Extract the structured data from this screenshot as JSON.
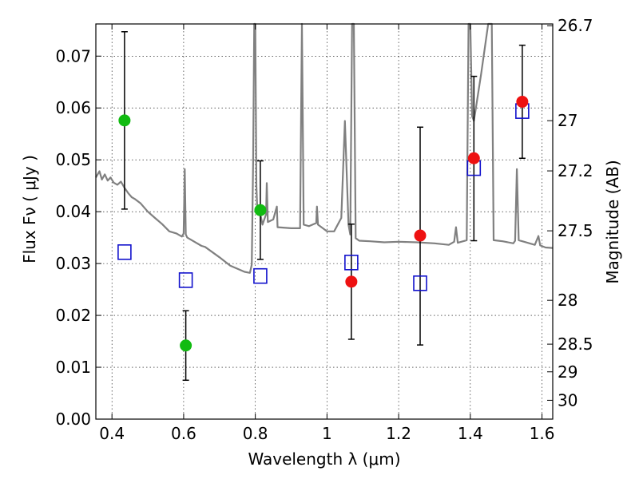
{
  "chart_data": {
    "type": "scatter",
    "xlabel": "Wavelength  λ (μm)",
    "ylabel": "Flux  Fν ( μJy )",
    "y2label": "Magnitude (AB)",
    "xlim": [
      0.355,
      1.63
    ],
    "ylim": [
      0.0,
      0.0762
    ],
    "grid": true,
    "x_ticks": [
      {
        "value": 0.4,
        "label": "0.4"
      },
      {
        "value": 0.6,
        "label": "0.6"
      },
      {
        "value": 0.8,
        "label": "0.8"
      },
      {
        "value": 1.0,
        "label": "1"
      },
      {
        "value": 1.2,
        "label": "1.2"
      },
      {
        "value": 1.4,
        "label": "1.4"
      },
      {
        "value": 1.6,
        "label": "1.6"
      }
    ],
    "y_ticks": [
      {
        "value": 0.0,
        "label": "0.00"
      },
      {
        "value": 0.01,
        "label": "0.01"
      },
      {
        "value": 0.02,
        "label": "0.02"
      },
      {
        "value": 0.03,
        "label": "0.03"
      },
      {
        "value": 0.04,
        "label": "0.04"
      },
      {
        "value": 0.05,
        "label": "0.05"
      },
      {
        "value": 0.06,
        "label": "0.06"
      },
      {
        "value": 0.07,
        "label": "0.07"
      }
    ],
    "magnitude_ticks": [
      {
        "mag": 26.7,
        "label": "26.7"
      },
      {
        "mag": 27.0,
        "label": "27"
      },
      {
        "mag": 27.2,
        "label": "27.2"
      },
      {
        "mag": 27.5,
        "label": "27.5"
      },
      {
        "mag": 28.0,
        "label": "28"
      },
      {
        "mag": 28.5,
        "label": "28.5"
      },
      {
        "mag": 29.0,
        "label": "29"
      },
      {
        "mag": 30.0,
        "label": "30"
      }
    ],
    "colors": {
      "observed_optical": "#11bb11",
      "observed_nir": "#ee1111",
      "model": "#1111cc",
      "spectrum": "#808080",
      "errorbar": "#000000"
    },
    "series": [
      {
        "marker": "circle",
        "color_key": "observed_optical",
        "points": [
          {
            "x": 0.435,
            "y": 0.0576,
            "ylo": 0.0405,
            "yhi": 0.0747
          },
          {
            "x": 0.606,
            "y": 0.0142,
            "ylo": 0.0075,
            "yhi": 0.0209
          },
          {
            "x": 0.814,
            "y": 0.0403,
            "ylo": 0.0308,
            "yhi": 0.0498
          }
        ]
      },
      {
        "marker": "circle",
        "color_key": "observed_nir",
        "points": [
          {
            "x": 1.068,
            "y": 0.0265,
            "ylo": 0.0154,
            "yhi": 0.0376
          },
          {
            "x": 1.26,
            "y": 0.0354,
            "ylo": 0.0143,
            "yhi": 0.0563
          },
          {
            "x": 1.41,
            "y": 0.0503,
            "ylo": 0.0344,
            "yhi": 0.0661
          },
          {
            "x": 1.545,
            "y": 0.0612,
            "ylo": 0.0503,
            "yhi": 0.0721
          }
        ]
      },
      {
        "marker": "square",
        "color_key": "model",
        "points": [
          {
            "x": 0.435,
            "y": 0.0322
          },
          {
            "x": 0.606,
            "y": 0.0268
          },
          {
            "x": 0.814,
            "y": 0.0276
          },
          {
            "x": 1.068,
            "y": 0.0302
          },
          {
            "x": 1.26,
            "y": 0.0262
          },
          {
            "x": 1.41,
            "y": 0.0484
          },
          {
            "x": 1.545,
            "y": 0.0594
          }
        ]
      }
    ],
    "spectrum": [
      [
        0.355,
        0.0466
      ],
      [
        0.365,
        0.0478
      ],
      [
        0.372,
        0.0462
      ],
      [
        0.38,
        0.0472
      ],
      [
        0.388,
        0.046
      ],
      [
        0.396,
        0.0466
      ],
      [
        0.405,
        0.0456
      ],
      [
        0.415,
        0.0452
      ],
      [
        0.425,
        0.0458
      ],
      [
        0.435,
        0.0446
      ],
      [
        0.445,
        0.0436
      ],
      [
        0.455,
        0.0428
      ],
      [
        0.465,
        0.0424
      ],
      [
        0.48,
        0.0416
      ],
      [
        0.5,
        0.04
      ],
      [
        0.52,
        0.0388
      ],
      [
        0.54,
        0.0376
      ],
      [
        0.56,
        0.0362
      ],
      [
        0.58,
        0.0358
      ],
      [
        0.595,
        0.0352
      ],
      [
        0.6,
        0.0358
      ],
      [
        0.603,
        0.0482
      ],
      [
        0.606,
        0.0356
      ],
      [
        0.61,
        0.035
      ],
      [
        0.63,
        0.0342
      ],
      [
        0.65,
        0.0334
      ],
      [
        0.66,
        0.0332
      ],
      [
        0.7,
        0.0312
      ],
      [
        0.73,
        0.0296
      ],
      [
        0.75,
        0.029
      ],
      [
        0.77,
        0.0284
      ],
      [
        0.785,
        0.0282
      ],
      [
        0.79,
        0.0298
      ],
      [
        0.794,
        0.0495
      ],
      [
        0.797,
        0.0762
      ],
      [
        0.8,
        0.0762
      ],
      [
        0.803,
        0.045
      ],
      [
        0.806,
        0.0395
      ],
      [
        0.815,
        0.0392
      ],
      [
        0.82,
        0.0375
      ],
      [
        0.83,
        0.0395
      ],
      [
        0.832,
        0.0455
      ],
      [
        0.835,
        0.038
      ],
      [
        0.85,
        0.0385
      ],
      [
        0.86,
        0.041
      ],
      [
        0.862,
        0.037
      ],
      [
        0.9,
        0.0368
      ],
      [
        0.925,
        0.0368
      ],
      [
        0.93,
        0.0762
      ],
      [
        0.935,
        0.0375
      ],
      [
        0.95,
        0.0372
      ],
      [
        0.97,
        0.0378
      ],
      [
        0.972,
        0.041
      ],
      [
        0.975,
        0.0375
      ],
      [
        1.0,
        0.0362
      ],
      [
        1.02,
        0.0362
      ],
      [
        1.04,
        0.0388
      ],
      [
        1.05,
        0.0575
      ],
      [
        1.06,
        0.0375
      ],
      [
        1.065,
        0.0356
      ],
      [
        1.07,
        0.0762
      ],
      [
        1.075,
        0.0762
      ],
      [
        1.08,
        0.0349
      ],
      [
        1.09,
        0.0344
      ],
      [
        1.12,
        0.0343
      ],
      [
        1.16,
        0.0341
      ],
      [
        1.2,
        0.0342
      ],
      [
        1.25,
        0.0341
      ],
      [
        1.3,
        0.0339
      ],
      [
        1.34,
        0.0336
      ],
      [
        1.355,
        0.0342
      ],
      [
        1.36,
        0.037
      ],
      [
        1.365,
        0.034
      ],
      [
        1.39,
        0.0345
      ],
      [
        1.395,
        0.0762
      ],
      [
        1.4,
        0.0762
      ],
      [
        1.405,
        0.0584
      ],
      [
        1.41,
        0.0575
      ],
      [
        1.43,
        0.0665
      ],
      [
        1.45,
        0.0762
      ],
      [
        1.46,
        0.0762
      ],
      [
        1.465,
        0.0345
      ],
      [
        1.49,
        0.0343
      ],
      [
        1.52,
        0.0339
      ],
      [
        1.525,
        0.0344
      ],
      [
        1.53,
        0.0482
      ],
      [
        1.535,
        0.0345
      ],
      [
        1.55,
        0.0342
      ],
      [
        1.57,
        0.0338
      ],
      [
        1.58,
        0.0336
      ],
      [
        1.59,
        0.0353
      ],
      [
        1.595,
        0.0335
      ],
      [
        1.61,
        0.0331
      ],
      [
        1.63,
        0.033
      ]
    ]
  }
}
